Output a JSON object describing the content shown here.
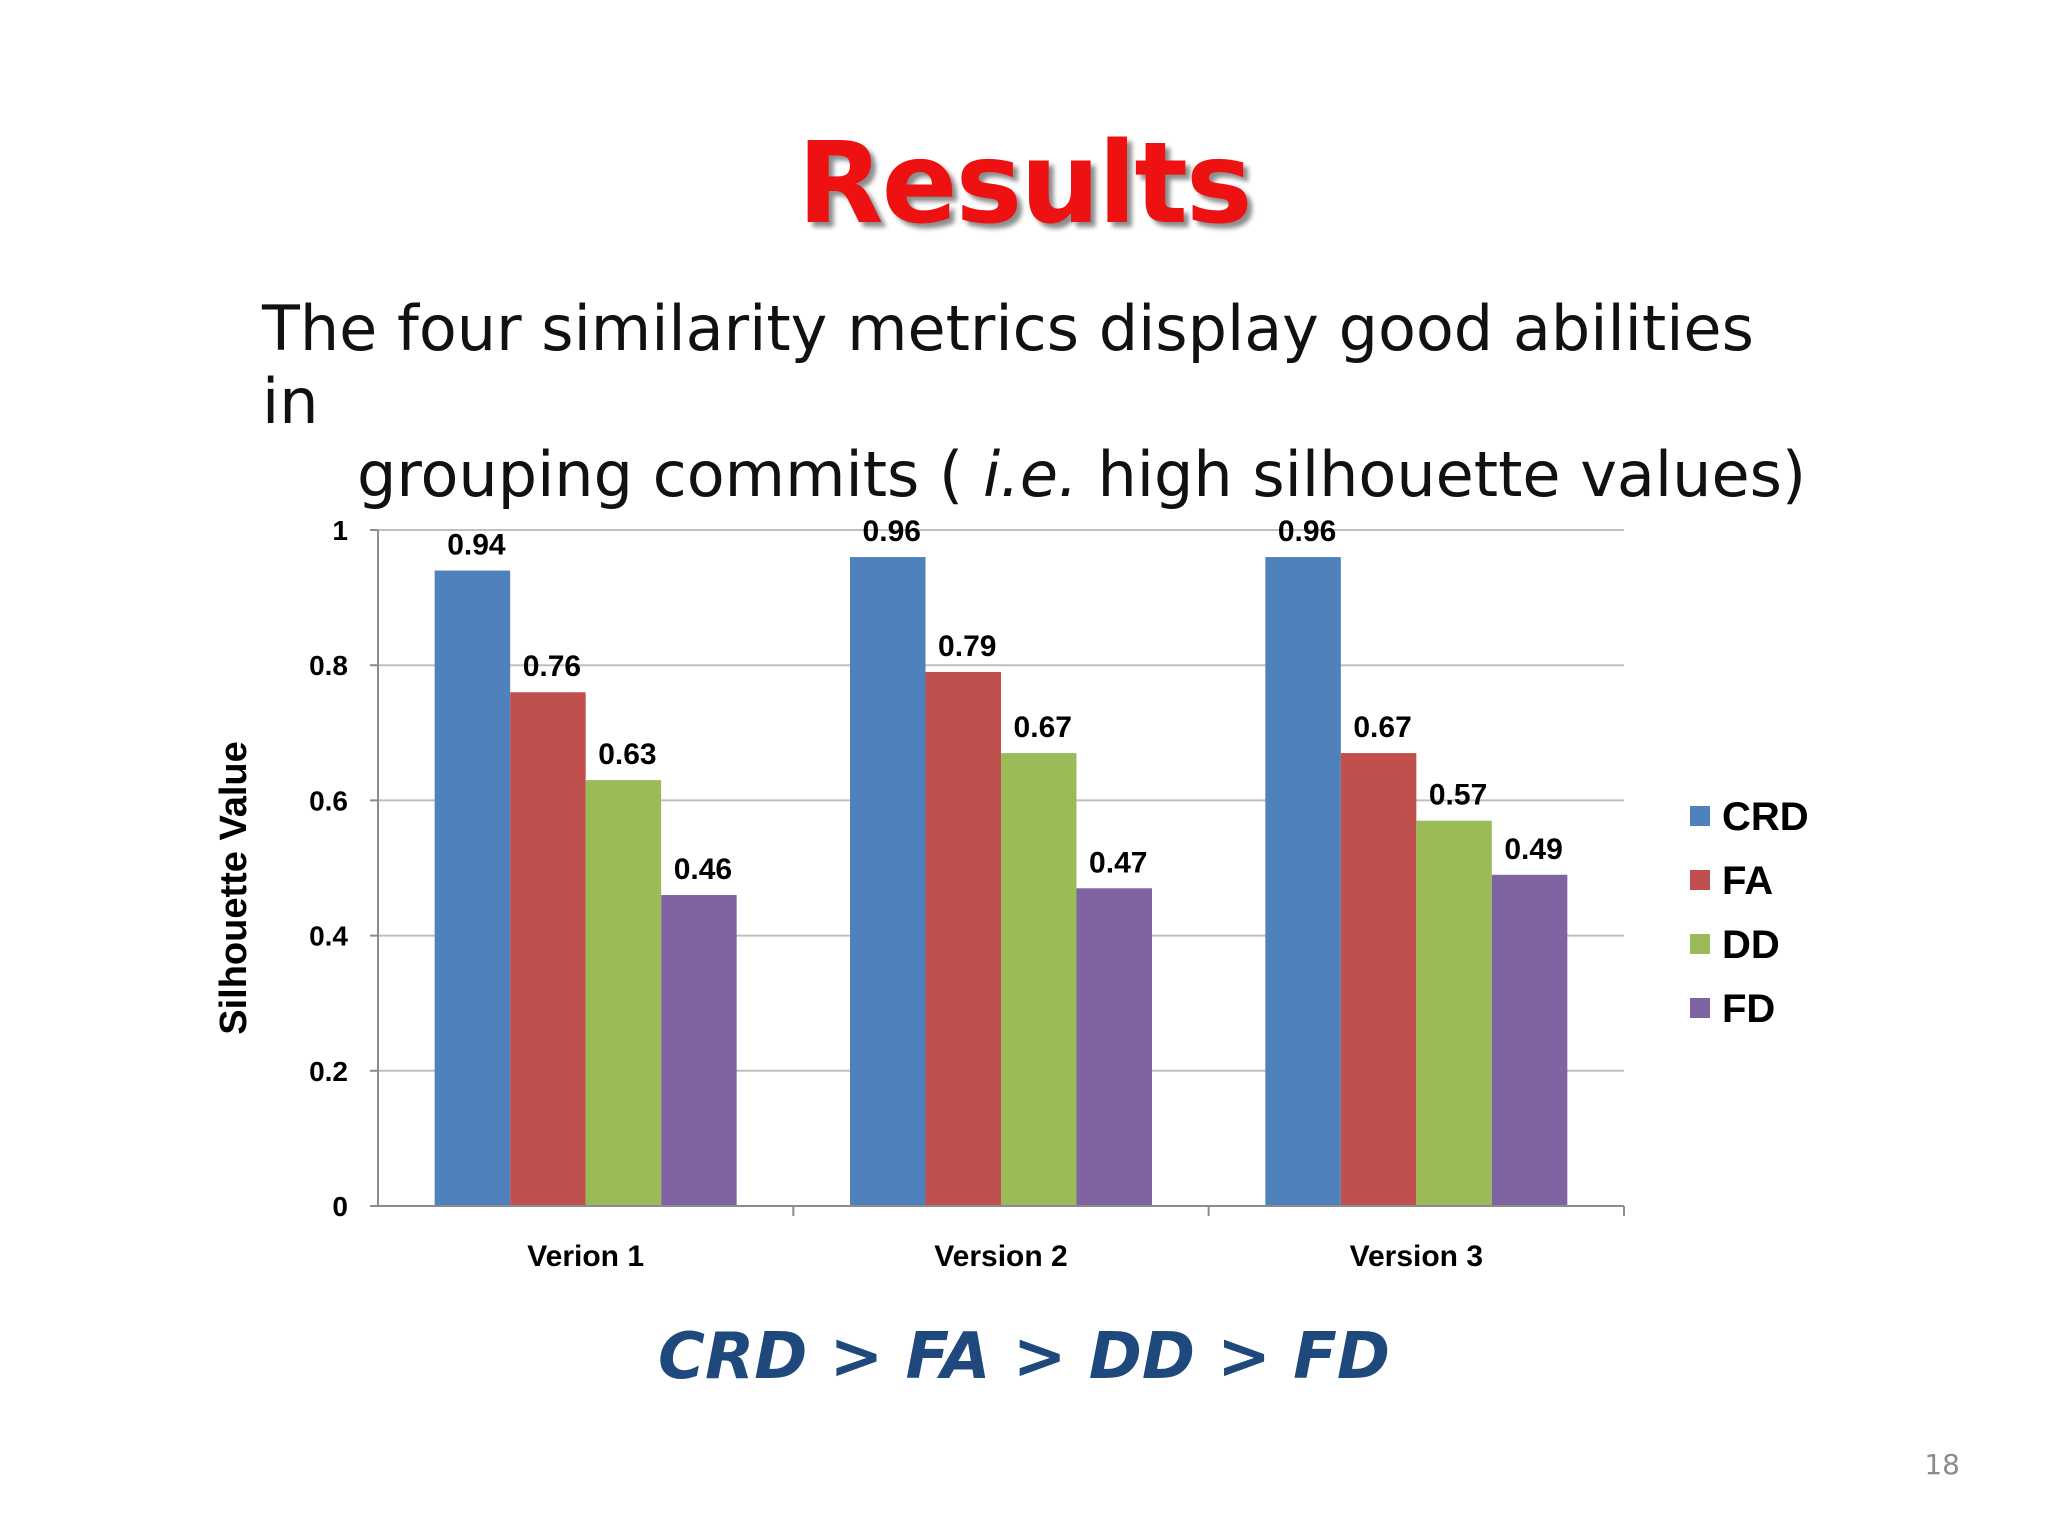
{
  "slide": {
    "title": "Results",
    "subtitle_line1": "The four similarity metrics display good abilities in",
    "subtitle_line2_before": "grouping commits",
    "subtitle_line2_paren": "(",
    "subtitle_line2_italic": "i.e.",
    "subtitle_line2_after": "high silhouette values)",
    "conclusion": "CRD > FA > DD > FD",
    "page_number": "18"
  },
  "chart_data": {
    "type": "bar",
    "categories": [
      "Verion 1",
      "Version 2",
      "Version 3"
    ],
    "series": [
      {
        "name": "CRD",
        "color": "#4f81bd",
        "values": [
          0.94,
          0.96,
          0.96
        ]
      },
      {
        "name": "FA",
        "color": "#c0504d",
        "values": [
          0.76,
          0.79,
          0.67
        ]
      },
      {
        "name": "DD",
        "color": "#9bbb59",
        "values": [
          0.63,
          0.67,
          0.57
        ]
      },
      {
        "name": "FD",
        "color": "#8064a2",
        "values": [
          0.46,
          0.47,
          0.49
        ]
      }
    ],
    "ylabel": "Silhouette Value",
    "xlabel": "",
    "ylim": [
      0,
      1
    ],
    "yticks": [
      0,
      0.2,
      0.4,
      0.6,
      0.8,
      1
    ],
    "ytick_labels": [
      "0",
      "0.2",
      "0.4",
      "0.6",
      "0.8",
      "1"
    ],
    "grid": true,
    "legend_position": "right",
    "data_labels": true
  }
}
